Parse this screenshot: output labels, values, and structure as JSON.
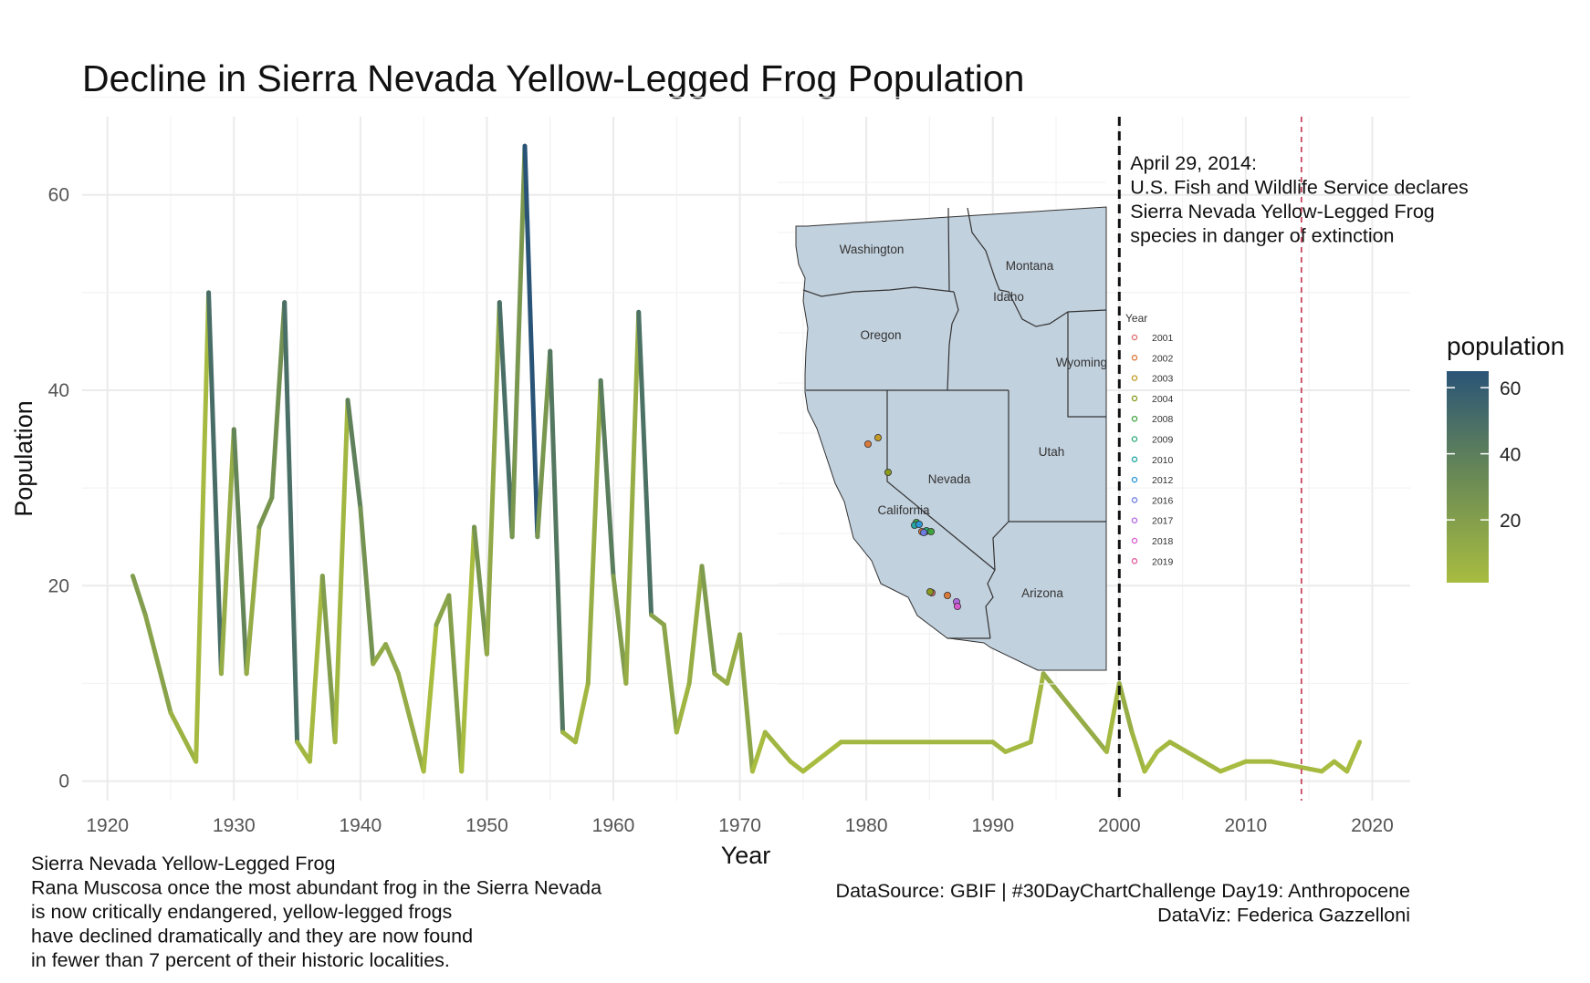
{
  "title": "Decline in Sierra Nevada Yellow-Legged Frog Population",
  "chart_data": {
    "type": "line",
    "xlabel": "Year",
    "ylabel": "Population",
    "xlim": [
      1918,
      2023
    ],
    "ylim": [
      -2,
      68
    ],
    "x_ticks": [
      1920,
      1930,
      1940,
      1950,
      1960,
      1970,
      1980,
      1990,
      2000,
      2010,
      2020
    ],
    "y_ticks": [
      0,
      20,
      40,
      60
    ],
    "grid": true,
    "color_scale": {
      "name": "population",
      "ticks": [
        20,
        40,
        60
      ],
      "low_color": "#a8bc40",
      "high_color": "#2a5477",
      "range": [
        1,
        65
      ]
    },
    "x": [
      1922,
      1923,
      1925,
      1927,
      1928,
      1929,
      1930,
      1931,
      1932,
      1933,
      1934,
      1935,
      1936,
      1937,
      1938,
      1939,
      1940,
      1941,
      1942,
      1943,
      1945,
      1946,
      1947,
      1948,
      1949,
      1950,
      1951,
      1952,
      1953,
      1954,
      1955,
      1956,
      1957,
      1958,
      1959,
      1960,
      1961,
      1962,
      1963,
      1964,
      1965,
      1966,
      1967,
      1968,
      1969,
      1970,
      1971,
      1972,
      1974,
      1975,
      1978,
      1990,
      1991,
      1993,
      1994,
      1999,
      2000,
      2001,
      2002,
      2003,
      2004,
      2008,
      2010,
      2012,
      2016,
      2017,
      2018,
      2019
    ],
    "y": [
      21,
      17,
      7,
      2,
      50,
      11,
      36,
      11,
      26,
      29,
      49,
      4,
      2,
      21,
      4,
      39,
      28,
      12,
      14,
      11,
      1,
      16,
      19,
      1,
      26,
      13,
      49,
      25,
      65,
      25,
      44,
      5,
      4,
      10,
      41,
      21,
      10,
      48,
      17,
      16,
      5,
      10,
      22,
      11,
      10,
      15,
      1,
      5,
      2,
      1,
      4,
      4,
      3,
      4,
      11,
      3,
      10,
      5,
      1,
      3,
      4,
      1,
      2,
      2,
      1,
      2,
      1,
      4
    ],
    "annotations": [
      {
        "x": 2000,
        "style": "dashed",
        "color": "#111111",
        "text": [
          "April 29, 2014:",
          "U.S. Fish and Wildlife Service declares",
          "Sierra Nevada Yellow-Legged Frog",
          "species in danger of extinction"
        ]
      },
      {
        "x": 2014.4,
        "style": "dashed",
        "color": "#c8475f"
      }
    ]
  },
  "inset_map": {
    "states": [
      "Washington",
      "Montana",
      "Idaho",
      "Oregon",
      "Wyoming",
      "Nevada",
      "Utah",
      "California",
      "Arizona"
    ],
    "legend_title": "Year",
    "legend": [
      {
        "label": "2001",
        "color": "#e06c6c"
      },
      {
        "label": "2002",
        "color": "#d97a3a"
      },
      {
        "label": "2003",
        "color": "#c39a28"
      },
      {
        "label": "2004",
        "color": "#8a9a1e"
      },
      {
        "label": "2008",
        "color": "#3fa33f"
      },
      {
        "label": "2009",
        "color": "#2aa874"
      },
      {
        "label": "2010",
        "color": "#24a5a0"
      },
      {
        "label": "2012",
        "color": "#2a96d6"
      },
      {
        "label": "2016",
        "color": "#6f7de0"
      },
      {
        "label": "2017",
        "color": "#b267e0"
      },
      {
        "label": "2018",
        "color": "#d85ad0"
      },
      {
        "label": "2019",
        "color": "#e05c9c"
      }
    ]
  },
  "caption_left": [
    "Sierra Nevada Yellow-Legged Frog",
    "Rana Muscosa once the most abundant frog in the Sierra Nevada",
    "is now critically endangered, yellow-legged frogs",
    "have declined dramatically and they are now found",
    "in fewer than 7 percent of their historic localities."
  ],
  "caption_right": [
    "DataSource: GBIF | #30DayChartChallenge Day19: Anthropocene",
    "DataViz: Federica Gazzelloni"
  ]
}
